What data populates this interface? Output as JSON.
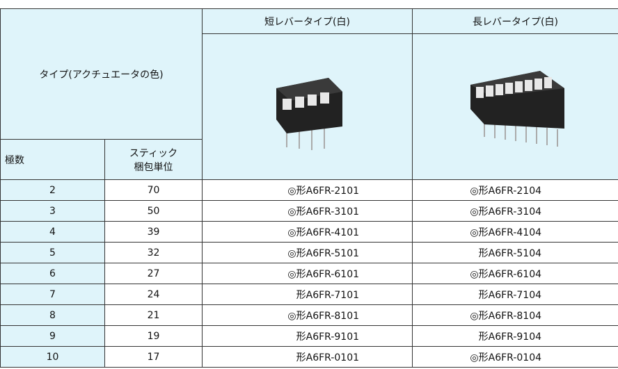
{
  "table": {
    "header": {
      "type_label": "タイプ(アクチュエータの色)",
      "columns": [
        "短レバータイプ(白)",
        "長レバータイプ(白)"
      ],
      "pole_label": "極数",
      "stick_label": [
        "スティック",
        "梱包単位"
      ]
    },
    "rows": [
      [
        2,
        70,
        "◎形A6FR-2101",
        "◎形A6FR-2104"
      ],
      [
        3,
        50,
        "◎形A6FR-3101",
        "◎形A6FR-3104"
      ],
      [
        4,
        39,
        "◎形A6FR-4101",
        "◎形A6FR-4104"
      ],
      [
        5,
        32,
        "◎形A6FR-5101",
        "形A6FR-5104"
      ],
      [
        6,
        27,
        "◎形A6FR-6101",
        "◎形A6FR-6104"
      ],
      [
        7,
        24,
        "形A6FR-7101",
        "形A6FR-7104"
      ],
      [
        8,
        21,
        "◎形A6FR-8101",
        "◎形A6FR-8104"
      ],
      [
        9,
        19,
        "形A6FR-9101",
        "形A6FR-9104"
      ],
      [
        10,
        17,
        "形A6FR-0101",
        "◎形A6FR-0104"
      ]
    ]
  }
}
